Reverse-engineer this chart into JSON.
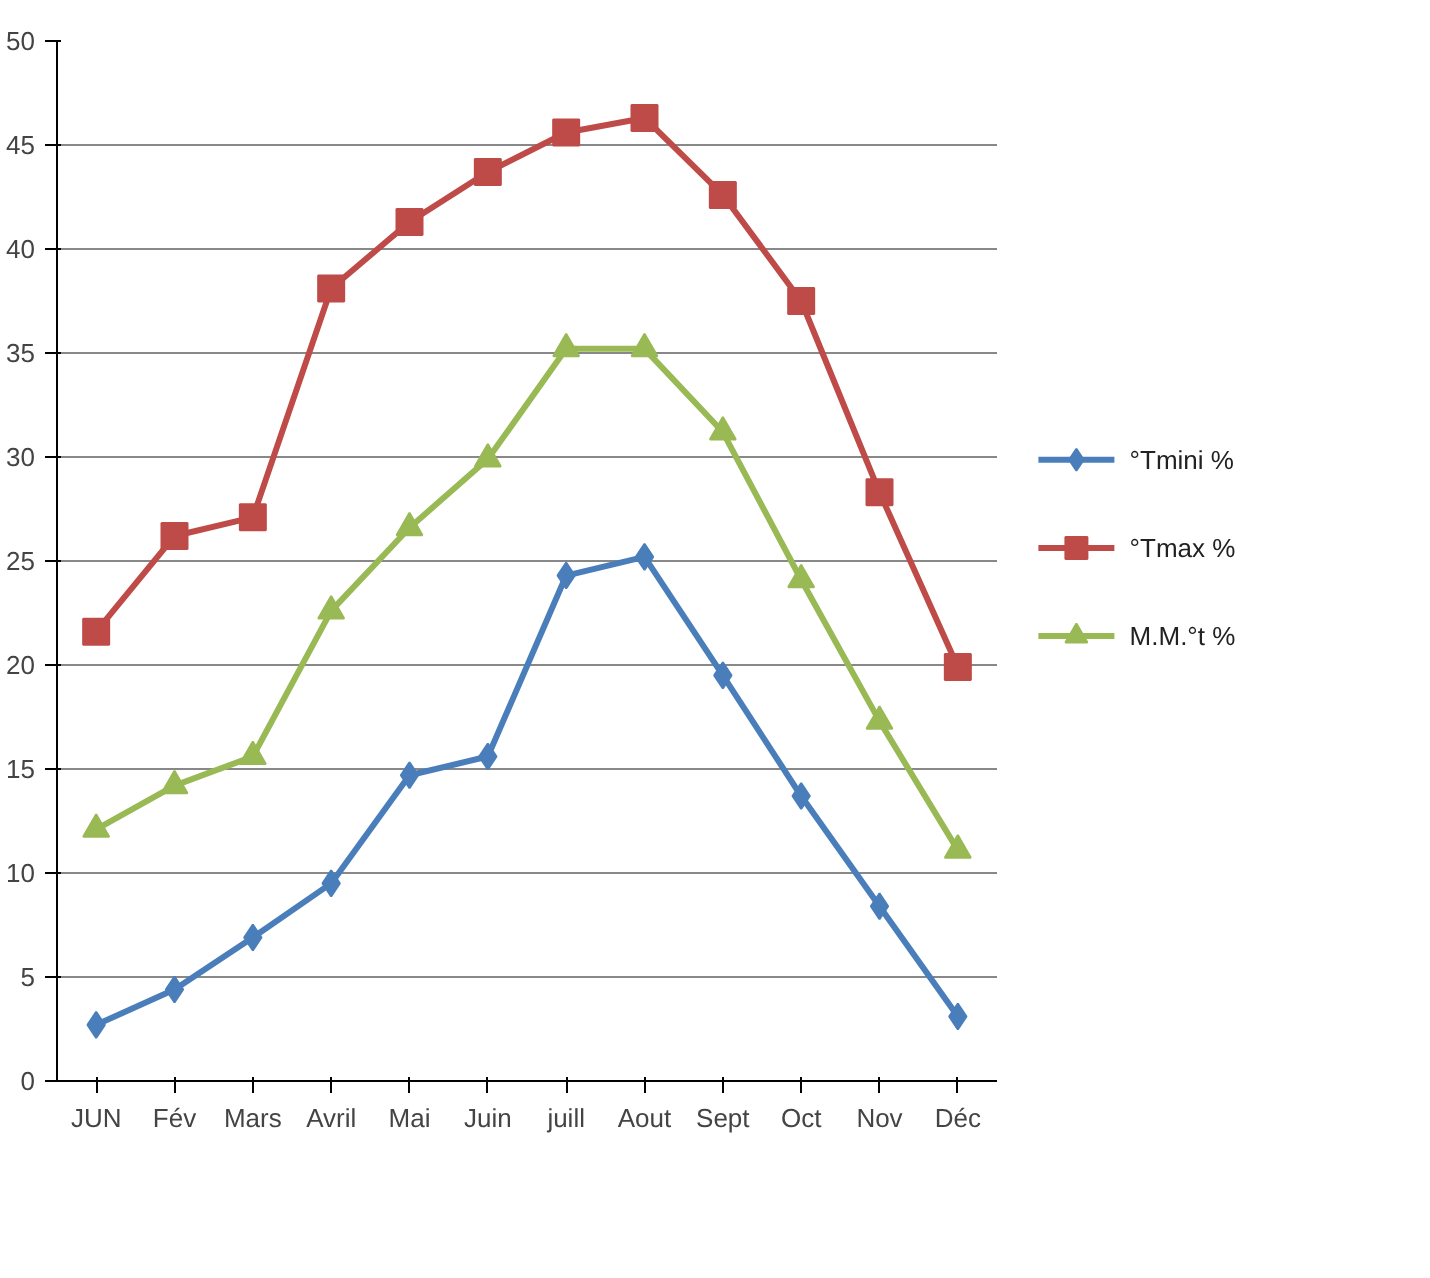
{
  "chart_data": {
    "type": "line",
    "categories": [
      "JUN",
      "Fév",
      "Mars",
      "Avril",
      "Mai",
      "Juin",
      "juill",
      "Aout",
      "Sept",
      "Oct",
      "Nov",
      "Déc"
    ],
    "series": [
      {
        "name": "°Tmini %",
        "color": "#4a7ebb",
        "marker": "diamond",
        "values": [
          2.7,
          4.4,
          6.9,
          9.5,
          14.7,
          15.6,
          24.3,
          25.2,
          19.5,
          13.7,
          8.4,
          3.1
        ]
      },
      {
        "name": "°Tmax %",
        "color": "#be4b48",
        "marker": "square",
        "values": [
          21.6,
          26.2,
          27.1,
          38.1,
          41.3,
          43.7,
          45.6,
          46.3,
          42.6,
          37.5,
          28.3,
          19.9
        ]
      },
      {
        "name": "M.M.°t  %",
        "color": "#98b954",
        "marker": "triangle",
        "values": [
          12.1,
          14.2,
          15.6,
          22.6,
          26.6,
          29.9,
          35.2,
          35.2,
          31.2,
          24.1,
          17.3,
          11.1
        ]
      }
    ],
    "ylim": [
      0,
      50
    ],
    "yticks": [
      0,
      5,
      10,
      15,
      20,
      25,
      30,
      35,
      40,
      45,
      50
    ],
    "grid": "y",
    "legend": "right",
    "line_style": "solid"
  }
}
